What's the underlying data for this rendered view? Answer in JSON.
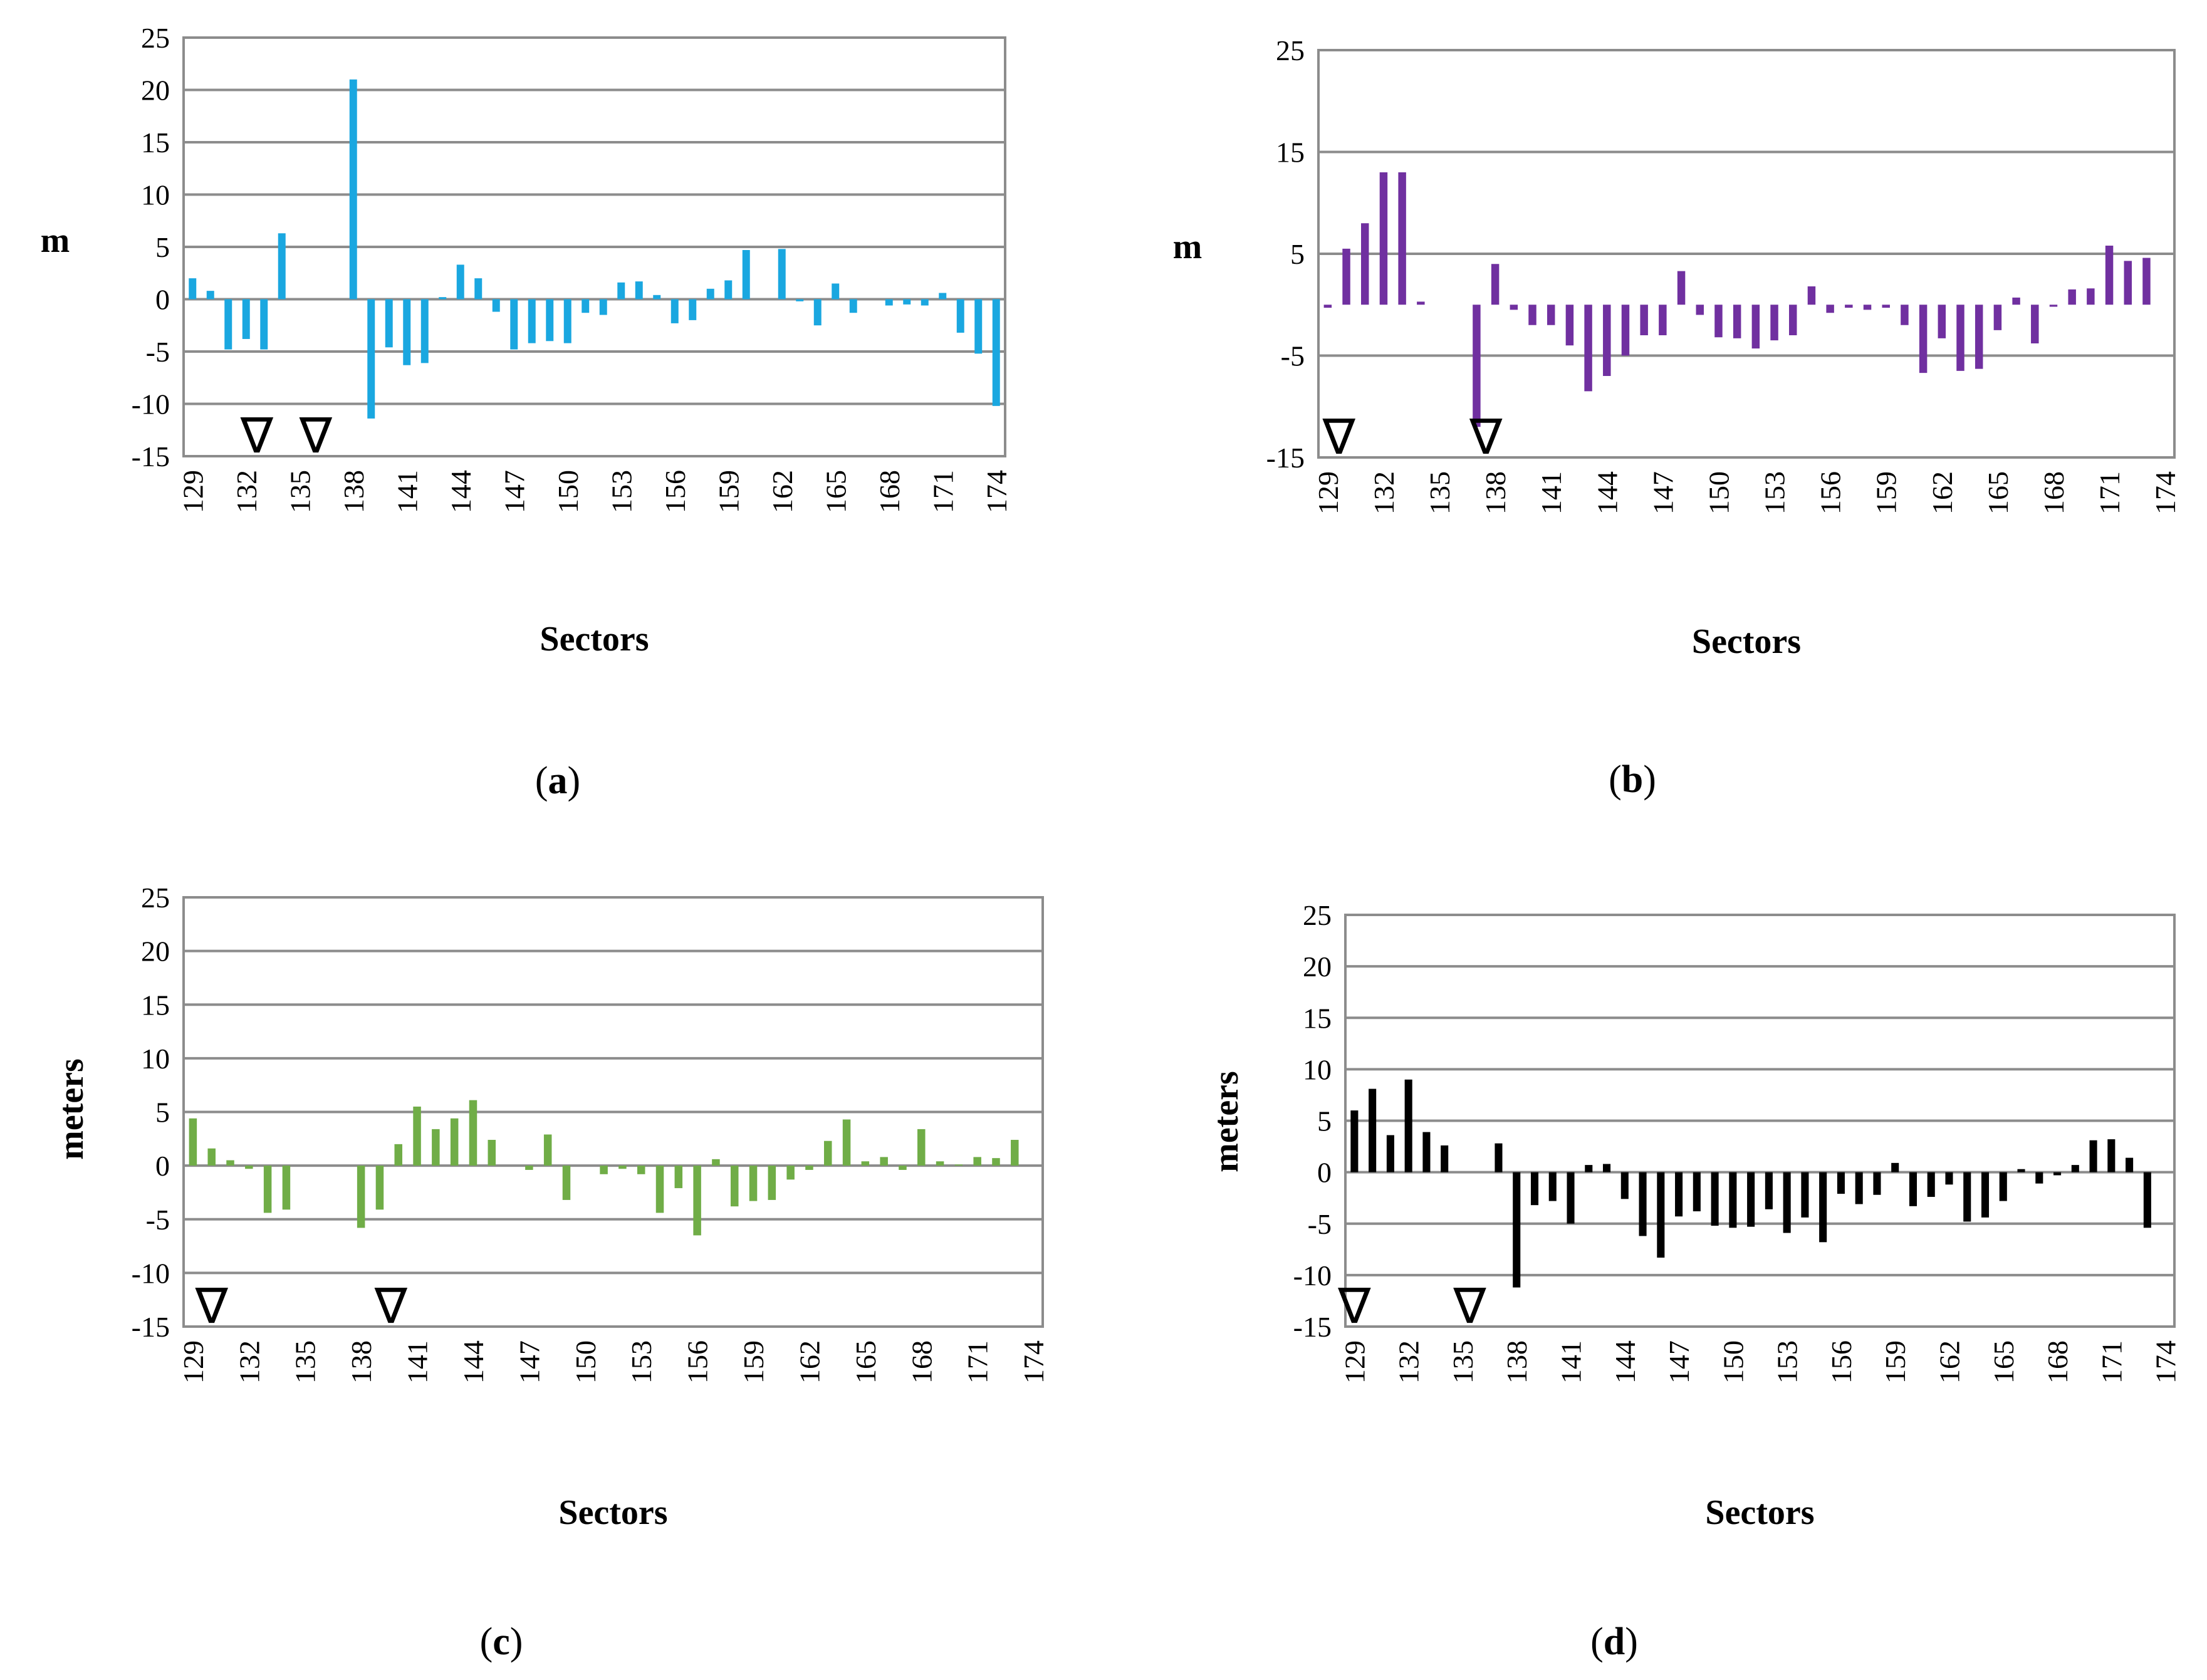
{
  "chart_data": [
    {
      "type": "bar",
      "panel": "a",
      "color": "#1AA7E0",
      "ylabel": "m",
      "xlabel": "Sectors",
      "ylim": [
        -15,
        25
      ],
      "yticks": [
        25,
        20,
        15,
        10,
        5,
        0,
        -5,
        -10,
        -15
      ],
      "grid": true,
      "categories": [
        "129",
        "130",
        "131",
        "132",
        "133",
        "134",
        "135",
        "136",
        "137",
        "138",
        "139",
        "140",
        "141",
        "142",
        "143",
        "144",
        "145",
        "146",
        "147",
        "148",
        "149",
        "150",
        "151",
        "152",
        "153",
        "154",
        "155",
        "156",
        "157",
        "158",
        "159",
        "160",
        "161",
        "162",
        "163",
        "164",
        "165",
        "166",
        "167",
        "168",
        "169",
        "170",
        "171",
        "172",
        "173",
        "174"
      ],
      "xtick_labels": [
        "129",
        "132",
        "135",
        "138",
        "141",
        "144",
        "147",
        "150",
        "153",
        "156",
        "159",
        "162",
        "165",
        "168",
        "171",
        "174"
      ],
      "values": [
        2,
        0.8,
        -4.8,
        -3.8,
        -4.8,
        6.3,
        0,
        0,
        0,
        21,
        -11.4,
        -4.6,
        -6.3,
        -6.1,
        0.2,
        3.3,
        2,
        -1.2,
        -4.8,
        -4.2,
        -4,
        -4.2,
        -1.3,
        -1.5,
        1.6,
        1.7,
        0.4,
        -2.3,
        -2,
        1,
        1.8,
        4.7,
        0,
        4.8,
        -0.2,
        -2.5,
        1.5,
        -1.3,
        0,
        -0.6,
        -0.5,
        -0.6,
        0.6,
        -3.2,
        -5.2,
        -10.2
      ],
      "markers": [
        {
          "symbol": "∇",
          "at": 132.6
        },
        {
          "symbol": "∇",
          "at": 135.9
        }
      ],
      "panel_label": {
        "open": "(",
        "letter": "a",
        "close": ")"
      }
    },
    {
      "type": "bar",
      "panel": "b",
      "color": "#7030A0",
      "ylabel": "m",
      "xlabel": "Sectors",
      "ylim": [
        -15,
        25
      ],
      "yticks": [
        25,
        15,
        5,
        -5,
        -15
      ],
      "grid": true,
      "categories": [
        "129",
        "130",
        "131",
        "132",
        "133",
        "134",
        "135",
        "136",
        "137",
        "138",
        "139",
        "140",
        "141",
        "142",
        "143",
        "144",
        "145",
        "146",
        "147",
        "148",
        "149",
        "150",
        "151",
        "152",
        "153",
        "154",
        "155",
        "156",
        "157",
        "158",
        "159",
        "160",
        "161",
        "162",
        "163",
        "164",
        "165",
        "166",
        "167",
        "168",
        "169",
        "170",
        "171",
        "172",
        "173",
        "174"
      ],
      "xtick_labels": [
        "129",
        "132",
        "135",
        "138",
        "141",
        "144",
        "147",
        "150",
        "153",
        "156",
        "159",
        "162",
        "165",
        "168",
        "171",
        "174"
      ],
      "values": [
        -0.3,
        5.5,
        8,
        13,
        13,
        0.3,
        0,
        0,
        -12,
        4,
        -0.5,
        -2,
        -2,
        -4,
        -8.5,
        -7,
        -5,
        -3,
        -3,
        3.3,
        -1,
        -3.2,
        -3.3,
        -4.3,
        -3.5,
        -3,
        1.8,
        -0.8,
        -0.3,
        -0.5,
        -0.3,
        -2,
        -6.7,
        -3.3,
        -6.5,
        -6.3,
        -2.5,
        0.7,
        -3.8,
        -0.2,
        1.5,
        1.6,
        5.8,
        4.3,
        4.6,
        0
      ],
      "markers": [
        {
          "symbol": "∇",
          "at": 129.6
        },
        {
          "symbol": "∇",
          "at": 137.5
        }
      ],
      "panel_label": {
        "open": "(",
        "letter": "b",
        "close": ")"
      }
    },
    {
      "type": "bar",
      "panel": "c",
      "color": "#70AD47",
      "ylabel": "meters",
      "xlabel": "Sectors",
      "ylim": [
        -15,
        25
      ],
      "yticks": [
        25,
        20,
        15,
        10,
        5,
        0,
        -5,
        -10,
        -15
      ],
      "grid": true,
      "categories": [
        "129",
        "130",
        "131",
        "132",
        "133",
        "134",
        "135",
        "136",
        "137",
        "138",
        "139",
        "140",
        "141",
        "142",
        "143",
        "144",
        "145",
        "146",
        "147",
        "148",
        "149",
        "150",
        "151",
        "152",
        "153",
        "154",
        "155",
        "156",
        "157",
        "158",
        "159",
        "160",
        "161",
        "162",
        "163",
        "164",
        "165",
        "166",
        "167",
        "168",
        "169",
        "170",
        "171",
        "172",
        "173",
        "174"
      ],
      "xtick_labels": [
        "129",
        "132",
        "135",
        "138",
        "141",
        "144",
        "147",
        "150",
        "153",
        "156",
        "159",
        "162",
        "165",
        "168",
        "171",
        "174"
      ],
      "values": [
        4.4,
        1.6,
        0.5,
        -0.3,
        -4.4,
        -4.1,
        0,
        0,
        0,
        -5.8,
        -4.1,
        2,
        5.5,
        3.4,
        4.4,
        6.1,
        2.4,
        0,
        -0.4,
        2.9,
        -3.2,
        0,
        -0.8,
        -0.3,
        -0.8,
        -4.4,
        -2.1,
        -6.5,
        0.6,
        -3.8,
        -3.3,
        -3.2,
        -1.3,
        -0.4,
        2.3,
        4.3,
        0.4,
        0.8,
        -0.4,
        3.4,
        0.4,
        0.1,
        0.8,
        0.7,
        2.4,
        0
      ],
      "markers": [
        {
          "symbol": "∇",
          "at": 130
        },
        {
          "symbol": "∇",
          "at": 139.6
        }
      ],
      "panel_label": {
        "open": "(",
        "letter": "c",
        "close": ")"
      }
    },
    {
      "type": "bar",
      "panel": "d",
      "color": "#000000",
      "ylabel": "meters",
      "xlabel": "Sectors",
      "ylim": [
        -15,
        25
      ],
      "yticks": [
        25,
        20,
        15,
        10,
        5,
        0,
        -5,
        -10,
        -15
      ],
      "grid": true,
      "categories": [
        "129",
        "130",
        "131",
        "132",
        "133",
        "134",
        "135",
        "136",
        "137",
        "138",
        "139",
        "140",
        "141",
        "142",
        "143",
        "144",
        "145",
        "146",
        "147",
        "148",
        "149",
        "150",
        "151",
        "152",
        "153",
        "154",
        "155",
        "156",
        "157",
        "158",
        "159",
        "160",
        "161",
        "162",
        "163",
        "164",
        "165",
        "166",
        "167",
        "168",
        "169",
        "170",
        "171",
        "172",
        "173",
        "174"
      ],
      "xtick_labels": [
        "129",
        "132",
        "135",
        "138",
        "141",
        "144",
        "147",
        "150",
        "153",
        "156",
        "159",
        "162",
        "165",
        "168",
        "171",
        "174"
      ],
      "values": [
        6,
        8.1,
        3.6,
        9,
        3.9,
        2.6,
        0,
        0,
        2.8,
        -11.2,
        -3.2,
        -2.8,
        -5,
        0.7,
        0.8,
        -2.6,
        -6.2,
        -8.3,
        -4.3,
        -3.8,
        -5.2,
        -5.4,
        -5.3,
        -3.6,
        -5.9,
        -4.4,
        -6.8,
        -2.1,
        -3.1,
        -2.2,
        0.9,
        -3.3,
        -2.4,
        -1.2,
        -4.8,
        -4.4,
        -2.8,
        0.3,
        -1.1,
        -0.3,
        0.7,
        3.1,
        3.2,
        1.4,
        -5.4,
        0
      ],
      "markers": [
        {
          "symbol": "∇",
          "at": 129
        },
        {
          "symbol": "∇",
          "at": 135.4
        }
      ],
      "panel_label": {
        "open": "(",
        "letter": "d",
        "close": ")"
      }
    }
  ]
}
